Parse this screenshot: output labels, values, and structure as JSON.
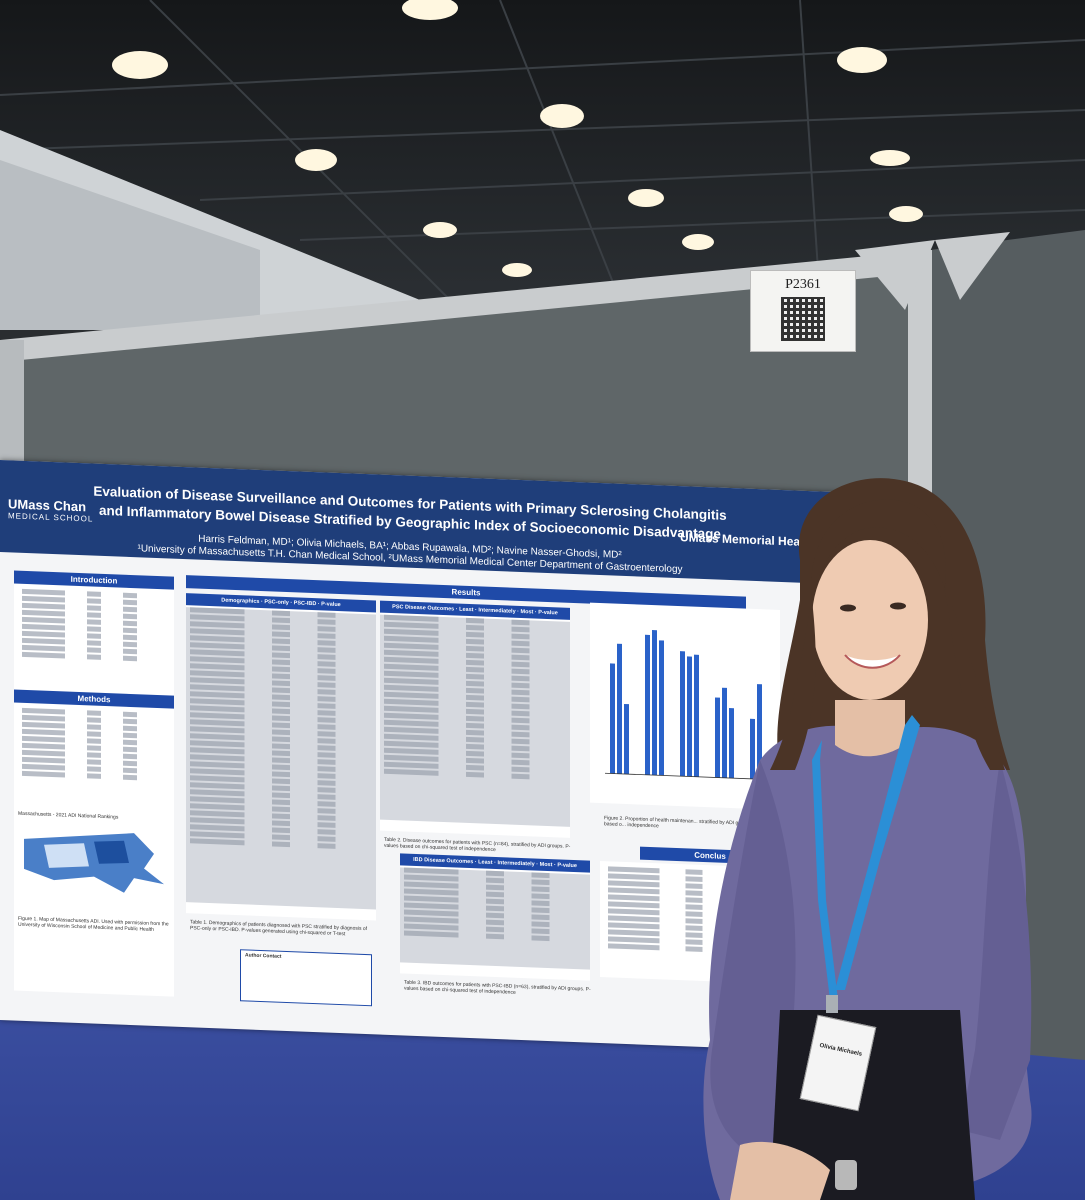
{
  "sign": {
    "number": "P2361"
  },
  "poster": {
    "title": "Evaluation of Disease Surveillance and Outcomes for Patients with Primary Sclerosing Cholangitis and Inflammatory Bowel Disease Stratified by Geographic Index of Socioeconomic Disadvantage",
    "authors": "Harris Feldman, MD¹; Olivia Michaels, BA¹; Abbas Rupawala, MD²; Navine Nasser-Ghodsi, MD²",
    "affiliations": "¹University of Massachusetts T.H. Chan Medical School, ²UMass Memorial Medical Center Department of Gastroenterology",
    "logo_left": "UMass Chan",
    "logo_left_sub": "MEDICAL SCHOOL",
    "logo_right": "UMass Memorial Health",
    "sections": {
      "introduction": "Introduction",
      "methods": "Methods",
      "results": "Results",
      "conclusions": "Conclus"
    },
    "table1_caption": "Table 1. Demographics of patients diagnosed with PSC stratified by diagnosis of PSC-only or PSC-IBD. P-values generated using chi-squared or T-test",
    "table2_caption": "Table 2. Disease outcomes for patients with PSC (n=84), stratified by ADI groups. P-values based on chi-squared test of independence",
    "table3_caption": "Table 3. IBD outcomes for patients with PSC-IBD (n=63), stratified by ADI groups. P-values based on chi-squared test of independence",
    "figure1_caption": "Figure 1. Map of Massachusetts ADI. Used with permission from the University of Wisconsin School of Medicine and Public Health",
    "figure2_caption": "Figure 2. Proportion of health maintenan... stratified by ADI groups. P-values based o... independence",
    "author_contact_label": "Author Contact",
    "map_title": "Massachusetts - 2021 ADI National Rankings"
  },
  "person": {
    "badge_name": "Olivia Michaels"
  },
  "colors": {
    "poster_blue": "#1f3e7a",
    "section_blue": "#1f4aa8",
    "board_gray": "#5f6668",
    "carpet": "#3b4fa0",
    "shirt": "#6f6a9e",
    "lanyard": "#2b8fd6"
  }
}
